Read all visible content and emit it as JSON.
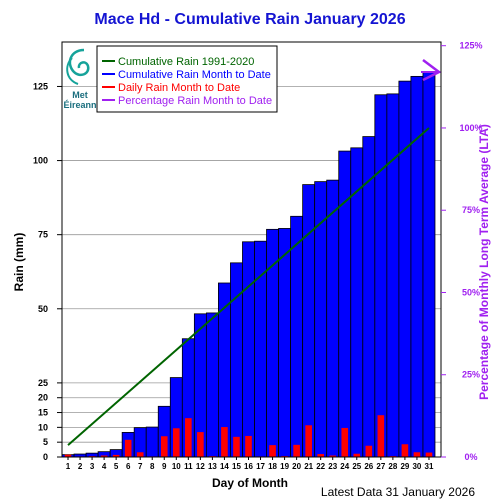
{
  "chart_data": {
    "type": "bar",
    "title": "Mace Hd - Cumulative Rain January   2026",
    "xlabel": "Day of Month",
    "ylabel": "Rain (mm)",
    "y2label": "Percentage  of Monthly Long Term Average (LTA)",
    "footer": "Latest Data 31 January 2026",
    "x": [
      1,
      2,
      3,
      4,
      5,
      6,
      7,
      8,
      9,
      10,
      11,
      12,
      13,
      14,
      15,
      16,
      17,
      18,
      19,
      20,
      21,
      22,
      23,
      24,
      25,
      26,
      27,
      28,
      29,
      30,
      31
    ],
    "ylim": [
      0,
      140
    ],
    "y_ticks": [
      0,
      5,
      10,
      15,
      20,
      25,
      50,
      75,
      100,
      125
    ],
    "y2_ticks": [
      "0%",
      "25%",
      "50%",
      "75%",
      "100%",
      "125%"
    ],
    "legend_position": "top-left",
    "series": [
      {
        "name": "Cumulative Rain 1991-2020",
        "color": "#006400",
        "line_start": [
          1,
          4.0
        ],
        "line_end": [
          31,
          111.0
        ]
      },
      {
        "name": "Cumulative Rain Month to Date",
        "color": "#0000ff",
        "values": [
          0.8,
          1.0,
          1.3,
          1.8,
          2.5,
          8.3,
          9.9,
          10.1,
          17.1,
          26.8,
          39.9,
          48.3,
          48.6,
          58.7,
          65.5,
          72.6,
          72.8,
          76.8,
          77.1,
          81.2,
          91.9,
          92.9,
          93.4,
          103.2,
          104.3,
          108.1,
          122.2,
          122.5,
          126.8,
          128.4,
          129.9
        ]
      },
      {
        "name": "Daily Rain Month to Date",
        "color": "#ff0000",
        "values": [
          0.8,
          0.2,
          0.3,
          0.5,
          0.7,
          5.8,
          1.6,
          0.2,
          7.0,
          9.7,
          13.1,
          8.4,
          0.3,
          10.1,
          6.8,
          7.1,
          0.2,
          4.0,
          0.3,
          4.1,
          10.7,
          1.0,
          0.5,
          9.8,
          1.1,
          3.8,
          14.1,
          0.3,
          4.3,
          1.6,
          1.5
        ]
      },
      {
        "name": "Percentage Rain Month to Date",
        "color": "#a020f0",
        "value": "117%"
      }
    ]
  },
  "logo": {
    "line1": "Met",
    "line2": "Éireann"
  }
}
